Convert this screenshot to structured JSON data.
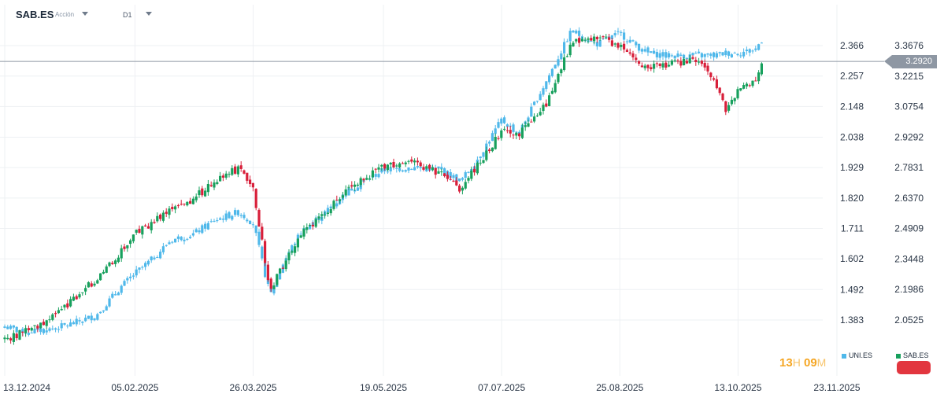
{
  "header": {
    "symbol": "SAB.ES",
    "symbol_type": "Acción",
    "timeframe": "D1"
  },
  "current_price_label": "3.2920",
  "timer": {
    "hours": "13",
    "h_unit": "H",
    "minutes": "09",
    "m_unit": "M"
  },
  "legend": [
    {
      "name": "UNI.ES",
      "color": "#4fb8ea"
    },
    {
      "name": "SAB.ES",
      "color": "#17a05d"
    }
  ],
  "colors": {
    "up": "#17a05d",
    "down": "#d81f3a",
    "compare": "#4fb8ea",
    "grid": "#eef0f3",
    "price_line": "#8e97a3",
    "timer": "#f5a623",
    "alert": "#e2363f"
  },
  "chart_data": {
    "type": "line",
    "chart_style": "candlestick",
    "title": "SAB.ES",
    "grid": true,
    "x_range": [
      "2024-12-13",
      "2025-11-23"
    ],
    "x_ticks": [
      "13.12.2024",
      "05.02.2025",
      "26.03.2025",
      "19.05.2025",
      "07.07.2025",
      "25.08.2025",
      "13.10.2025",
      "23.11.2025"
    ],
    "left_axis": {
      "series": "UNI.ES",
      "ticks": [
        2.366,
        2.257,
        2.148,
        2.038,
        1.929,
        1.82,
        1.711,
        1.602,
        1.492,
        1.383
      ],
      "ylim": [
        1.29,
        2.45
      ]
    },
    "right_axis": {
      "series": "SAB.ES",
      "ticks": [
        3.3676,
        3.2215,
        3.0754,
        2.9292,
        2.7831,
        2.637,
        2.4909,
        2.3448,
        2.1986,
        2.0525
      ],
      "ylim": [
        1.93,
        3.48
      ]
    },
    "current_price": 3.292,
    "series": [
      {
        "name": "SAB.ES",
        "axis": "right",
        "x": [
          "2024-12-13",
          "2024-12-20",
          "2025-01-01",
          "2025-01-10",
          "2025-01-20",
          "2025-01-30",
          "2025-02-05",
          "2025-02-12",
          "2025-02-20",
          "2025-03-01",
          "2025-03-10",
          "2025-03-20",
          "2025-03-26",
          "2025-04-02",
          "2025-04-07",
          "2025-04-10",
          "2025-04-15",
          "2025-04-25",
          "2025-05-05",
          "2025-05-19",
          "2025-05-30",
          "2025-06-12",
          "2025-06-20",
          "2025-06-27",
          "2025-07-07",
          "2025-07-14",
          "2025-07-25",
          "2025-08-05",
          "2025-08-15",
          "2025-08-25",
          "2025-09-05",
          "2025-09-15",
          "2025-09-25",
          "2025-10-03",
          "2025-10-08",
          "2025-10-13",
          "2025-10-20",
          "2025-10-23"
        ],
        "close": [
          1.96,
          1.99,
          2.06,
          2.15,
          2.25,
          2.38,
          2.47,
          2.51,
          2.6,
          2.63,
          2.72,
          2.78,
          2.67,
          2.2,
          2.3,
          2.38,
          2.47,
          2.57,
          2.68,
          2.79,
          2.81,
          2.75,
          2.68,
          2.79,
          2.96,
          2.94,
          3.08,
          3.38,
          3.41,
          3.37,
          3.26,
          3.28,
          3.3,
          3.2,
          3.05,
          3.15,
          3.2,
          3.29
        ]
      },
      {
        "name": "UNI.ES",
        "axis": "left",
        "x": [
          "2024-12-13",
          "2024-12-20",
          "2025-01-01",
          "2025-01-10",
          "2025-01-20",
          "2025-01-30",
          "2025-02-05",
          "2025-02-12",
          "2025-02-20",
          "2025-03-01",
          "2025-03-10",
          "2025-03-20",
          "2025-03-26",
          "2025-04-02",
          "2025-04-07",
          "2025-04-10",
          "2025-04-15",
          "2025-04-25",
          "2025-05-05",
          "2025-05-19",
          "2025-05-30",
          "2025-06-12",
          "2025-06-20",
          "2025-06-27",
          "2025-07-07",
          "2025-07-14",
          "2025-07-25",
          "2025-08-05",
          "2025-08-15",
          "2025-08-25",
          "2025-09-05",
          "2025-09-15",
          "2025-09-25",
          "2025-10-03",
          "2025-10-08",
          "2025-10-13",
          "2025-10-20",
          "2025-10-23"
        ],
        "close": [
          1.36,
          1.34,
          1.35,
          1.37,
          1.4,
          1.5,
          1.55,
          1.6,
          1.67,
          1.69,
          1.74,
          1.77,
          1.73,
          1.47,
          1.58,
          1.63,
          1.7,
          1.77,
          1.85,
          1.92,
          1.93,
          1.92,
          1.88,
          1.96,
          2.1,
          2.05,
          2.23,
          2.42,
          2.37,
          2.41,
          2.34,
          2.33,
          2.33,
          2.33,
          2.34,
          2.34,
          2.35,
          2.39
        ]
      }
    ]
  }
}
